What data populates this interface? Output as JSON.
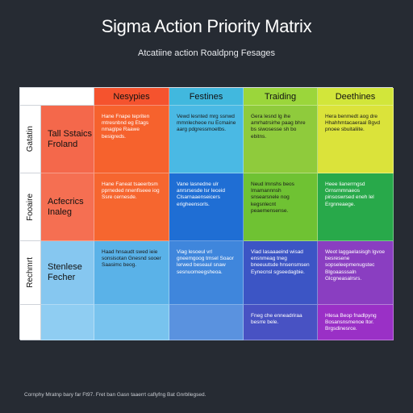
{
  "title": "Sigma Action Priority Matrix",
  "subtitle": "Atcatiine action Roaldpng Fesages",
  "footer": "Cornphy Mratnp bary far Ft97. Fret ban Gasn taaerrt caflyfng Bat Gnrbllegsed.",
  "columns": [
    {
      "label": "Nesypies",
      "color": "#f5532e"
    },
    {
      "label": "Festines",
      "color": "#41b8de"
    },
    {
      "label": "Traiding",
      "color": "#9bd63b"
    },
    {
      "label": "Deethines",
      "color": "#d2e63a"
    }
  ],
  "rows": [
    {
      "side_label": "Gatatin",
      "name": "Tall Sstaics Froland",
      "name_color": "#f4684b",
      "cells": [
        {
          "text": "Hane Fnape tepriten mtresnbnd eg Etags nmaglpe Raawe besigreds.",
          "color": "#f6622d"
        },
        {
          "text": "Vewd lesnted mrg ssnwd mmnlecheoe nu Ecmaine aarg pdgressmoetbs.",
          "color": "#4ab9e4"
        },
        {
          "text": "Gera lesnd lg ihe amrhatrsirhe paag bhre bs siwosesse sh bo ebitns.",
          "color": "#8fcb3c"
        },
        {
          "text": "Hera benmedt aog dre Hhahhmtacaeraal Bgvd pnoee sbuitaliite.",
          "color": "#dbe33a"
        }
      ]
    },
    {
      "side_label": "Fooaire",
      "name": "Acfecrics Inaleg",
      "name_color": "#f56f52",
      "cells": [
        {
          "text": "Hane Faneat tsaeerbsm pprneded nnenfiseee iog Ssre cernesde.",
          "color": "#f6662f"
        },
        {
          "text": "Vane lasnedne ulr anrsrsesde lsr Ieceid Clsarnaaenseicers erigheensorls.",
          "color": "#1f6ed4"
        },
        {
          "text": "Neud lmnshs beos Imamannnsh snsearsnele nog kegsnlecnt peaemensense.",
          "color": "#6fc233"
        },
        {
          "text": "Heee lianerrngsd Grnsrnmnaeos pinsoswrsed eneh lel Ergnneaege.",
          "color": "#28a94a"
        }
      ]
    },
    {
      "side_label": "Rechmrt",
      "name": "Stenlese Fecher",
      "name_color": "#86c7f0",
      "cells": [
        {
          "text": "Haad hnsaudt swed ieie sonsisotan Gnesnd sooer Saasimc beog.",
          "color": "#5ab2e8"
        },
        {
          "text": "Viag lesoeul vrl gneemgoog tmsel Soaor lerwed beseaul snaw sesnuomeegsheoa.",
          "color": "#3f86dc"
        },
        {
          "text": "Viad Iasaaaeind wisad ensnmeag tneg bneeuutsde hnsensmsen Eynecnsl sgseedagbie.",
          "color": "#3c55c5"
        },
        {
          "text": "Weot laggaelasisgh lgvoe besresene sopseleepmenugstec Blgoaasssaln Glcgneasalrsrs.",
          "color": "#8a3ec1"
        }
      ]
    },
    {
      "side_label": "",
      "name": "",
      "name_color": "#8fcdf2",
      "cells": [
        {
          "text": "",
          "color": "#78c3ee"
        },
        {
          "text": "",
          "color": "#5a92df"
        },
        {
          "text": "Fneg che enneadriraa besrre bele.",
          "color": "#4852c3"
        },
        {
          "text": "Hlesa Beop fnadlpyng Bosansnsmenoe ltor. Brgsdinesrce.",
          "color": "#9a30c6"
        }
      ]
    }
  ]
}
